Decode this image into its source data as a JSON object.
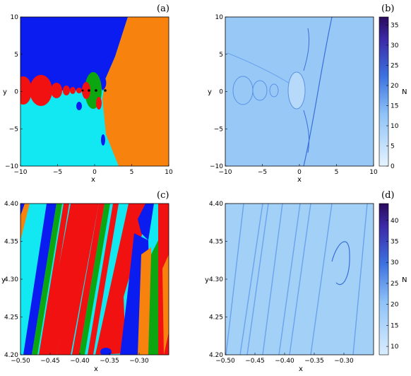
{
  "chart_data": [
    {
      "type": "heatmap",
      "panel_label": "(a)",
      "xlabel": "x",
      "ylabel": "y",
      "xlim": [
        -10,
        10
      ],
      "ylim": [
        -10,
        10
      ],
      "xticks": [
        -10,
        -5,
        0,
        5,
        10
      ],
      "yticks": [
        -10,
        -5,
        0,
        5,
        10
      ],
      "xtick_labels": [
        "−10",
        "−5",
        "0",
        "5",
        "10"
      ],
      "ytick_labels": [
        "−10",
        "−5",
        "0",
        "5",
        "10"
      ],
      "colors": {
        "blue": "#0b1cf0",
        "cyan": "#12e8f2",
        "red": "#f21111",
        "green": "#0ca611",
        "orange": "#f7820e",
        "black": "#000000"
      },
      "description_regions": [
        "blue upper-left",
        "cyan lower-left",
        "orange right wedge",
        "red/green chain along y=0"
      ]
    },
    {
      "type": "heatmap",
      "panel_label": "(b)",
      "xlabel": "x",
      "ylabel": "y",
      "xlim": [
        -10,
        10
      ],
      "ylim": [
        -10,
        10
      ],
      "xticks": [
        -10,
        -5,
        0,
        5,
        10
      ],
      "yticks": [
        -10,
        -5,
        0,
        5,
        10
      ],
      "xtick_labels": [
        "−10",
        "−5",
        "0",
        "5",
        "10"
      ],
      "ytick_labels": [
        "−10",
        "−5",
        "0",
        "5",
        "10"
      ],
      "colorbar": {
        "label": "N",
        "range": [
          0,
          37
        ],
        "ticks": [
          0,
          5,
          10,
          15,
          20,
          25,
          30,
          35
        ],
        "tick_labels": [
          "0",
          "5",
          "10",
          "15",
          "20",
          "25",
          "30",
          "35"
        ]
      }
    },
    {
      "type": "heatmap",
      "panel_label": "(c)",
      "xlabel": "x",
      "ylabel": "y",
      "xlim": [
        -0.5,
        -0.25
      ],
      "ylim": [
        4.2,
        4.4
      ],
      "xticks": [
        -0.5,
        -0.45,
        -0.4,
        -0.35,
        -0.3
      ],
      "yticks": [
        4.2,
        4.25,
        4.3,
        4.35,
        4.4
      ],
      "xtick_labels": [
        "−0.50",
        "−0.45",
        "−0.40",
        "−0.35",
        "−0.30"
      ],
      "ytick_labels": [
        "4.20",
        "4.25",
        "4.30",
        "4.35",
        "4.40"
      ]
    },
    {
      "type": "heatmap",
      "panel_label": "(d)",
      "xlabel": "x",
      "ylabel": "y",
      "xlim": [
        -0.5,
        -0.25
      ],
      "ylim": [
        4.2,
        4.4
      ],
      "xticks": [
        -0.5,
        -0.45,
        -0.4,
        -0.35,
        -0.3
      ],
      "yticks": [
        4.2,
        4.25,
        4.3,
        4.35,
        4.4
      ],
      "xtick_labels": [
        "−0.50",
        "−0.45",
        "−0.40",
        "−0.35",
        "−0.30"
      ],
      "ytick_labels": [
        "4.20",
        "4.25",
        "4.30",
        "4.35",
        "4.40"
      ],
      "colorbar": {
        "label": "N",
        "range": [
          8,
          44
        ],
        "ticks": [
          10,
          15,
          20,
          25,
          30,
          35,
          40
        ],
        "tick_labels": [
          "10",
          "15",
          "20",
          "25",
          "30",
          "35",
          "40"
        ]
      }
    }
  ]
}
